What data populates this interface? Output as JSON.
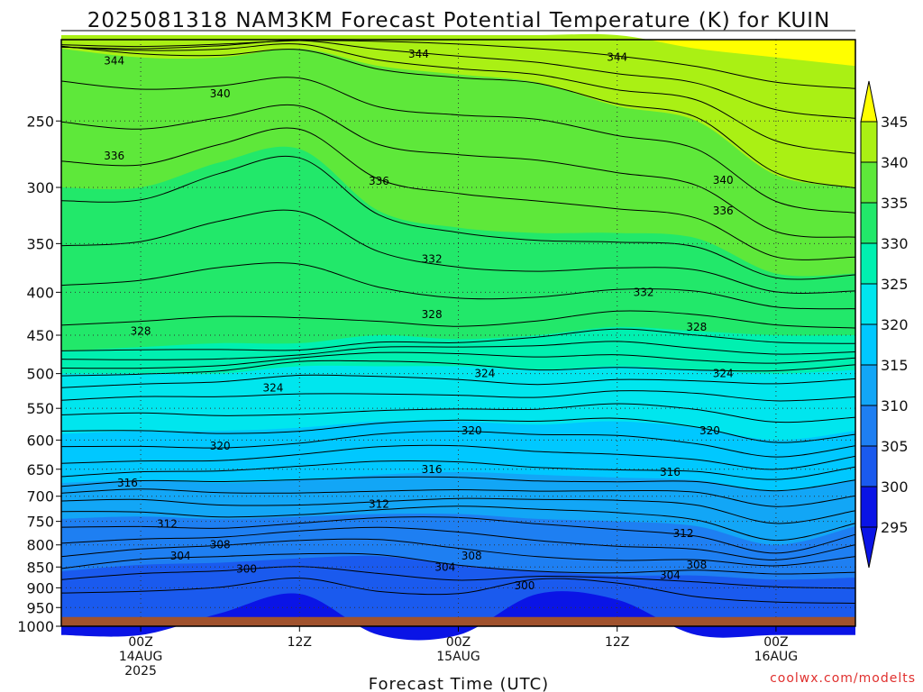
{
  "title": "2025081318 NAM3KM Forecast Potential Temperature (K) for KUIN",
  "credit": "coolwx.com/modelts",
  "colors": {
    "ground": "#a0522d",
    "fill_bands": [
      {
        "min": 295,
        "max": 300,
        "color": "#0a14e6"
      },
      {
        "min": 300,
        "max": 305,
        "color": "#1a5aee"
      },
      {
        "min": 305,
        "max": 310,
        "color": "#1e7ff2"
      },
      {
        "min": 310,
        "max": 315,
        "color": "#12a6f6"
      },
      {
        "min": 315,
        "max": 320,
        "color": "#00c8ff"
      },
      {
        "min": 320,
        "max": 325,
        "color": "#00e6ee"
      },
      {
        "min": 325,
        "max": 330,
        "color": "#00f0b0"
      },
      {
        "min": 330,
        "max": 335,
        "color": "#22e86a"
      },
      {
        "min": 335,
        "max": 340,
        "color": "#5ee83a"
      },
      {
        "min": 340,
        "max": 345,
        "color": "#aaf014"
      },
      {
        "min": 345,
        "max": 350,
        "color": "#ffff00"
      }
    ]
  },
  "chart_data": {
    "type": "heatmap",
    "title": "2025081318 NAM3KM Forecast Potential Temperature (K) for KUIN",
    "xlabel": "Forecast Time (UTC)",
    "ylabel": "",
    "x_ticks": [
      {
        "line1": "00Z",
        "line2": "14AUG",
        "line3": "2025",
        "hour": 6
      },
      {
        "line1": "12Z",
        "line2": "",
        "line3": "",
        "hour": 18
      },
      {
        "line1": "00Z",
        "line2": "15AUG",
        "line3": "",
        "hour": 30
      },
      {
        "line1": "12Z",
        "line2": "",
        "line3": "",
        "hour": 42
      },
      {
        "line1": "00Z",
        "line2": "16AUG",
        "line3": "",
        "hour": 54
      }
    ],
    "xlim_hours": [
      0,
      60
    ],
    "y_ticks": [
      "250",
      "300",
      "350",
      "400",
      "450",
      "500",
      "550",
      "600",
      "650",
      "700",
      "750",
      "800",
      "850",
      "900",
      "950",
      "1000"
    ],
    "ylim_hpa": [
      200,
      1000
    ],
    "y_scale": "log-pressure",
    "surface_hpa": 975,
    "grid": true,
    "colorbar": {
      "labels": [
        "295",
        "300",
        "305",
        "310",
        "315",
        "320",
        "325",
        "330",
        "335",
        "340",
        "345"
      ],
      "extend": "both"
    },
    "contour_interval_K": 4,
    "contours": [
      {
        "theta": 300,
        "label": "300",
        "levels_hpa": []
      },
      {
        "theta": 304,
        "label": "304"
      },
      {
        "theta": 308,
        "label": "308"
      },
      {
        "theta": 312,
        "label": "312"
      },
      {
        "theta": 316,
        "label": "316"
      },
      {
        "theta": 320,
        "label": "320"
      },
      {
        "theta": 324,
        "label": "324"
      },
      {
        "theta": 328,
        "label": "328"
      },
      {
        "theta": 332,
        "label": "332"
      },
      {
        "theta": 336,
        "label": "336"
      },
      {
        "theta": 340,
        "label": "340"
      },
      {
        "theta": 344,
        "label": "344"
      }
    ],
    "profile_hours": [
      0,
      6,
      12,
      18,
      24,
      30,
      36,
      42,
      48,
      54,
      60
    ],
    "theta_levels_K": [
      300,
      305,
      310,
      315,
      320,
      325,
      330,
      335,
      340,
      345
    ],
    "profiles_hpa": [
      [
        null,
        860,
        745,
        675,
        590,
        500,
        470,
        300,
        205,
        null
      ],
      [
        null,
        845,
        740,
        670,
        585,
        500,
        465,
        300,
        210,
        null
      ],
      [
        965,
        840,
        745,
        675,
        585,
        500,
        460,
        280,
        210,
        null
      ],
      [
        915,
        830,
        740,
        670,
        580,
        490,
        460,
        270,
        205,
        null
      ],
      [
        null,
        825,
        735,
        660,
        570,
        490,
        450,
        320,
        215,
        null
      ],
      [
        null,
        845,
        735,
        655,
        570,
        490,
        455,
        335,
        220,
        null
      ],
      [
        915,
        860,
        745,
        660,
        575,
        495,
        450,
        340,
        225,
        null
      ],
      [
        930,
        870,
        750,
        665,
        570,
        490,
        440,
        340,
        240,
        null
      ],
      [
        null,
        870,
        760,
        670,
        580,
        495,
        445,
        345,
        250,
        205
      ],
      [
        null,
        880,
        800,
        690,
        600,
        500,
        450,
        380,
        290,
        210
      ],
      [
        null,
        875,
        760,
        670,
        585,
        495,
        450,
        380,
        300,
        215
      ]
    ],
    "labels_annotated": [
      {
        "text": "344",
        "hour": 4,
        "hpa": 212
      },
      {
        "text": "344",
        "hour": 27,
        "hpa": 208
      },
      {
        "text": "344",
        "hour": 42,
        "hpa": 210
      },
      {
        "text": "340",
        "hour": 12,
        "hpa": 232
      },
      {
        "text": "340",
        "hour": 50,
        "hpa": 294
      },
      {
        "text": "336",
        "hour": 4,
        "hpa": 275
      },
      {
        "text": "336",
        "hour": 24,
        "hpa": 295
      },
      {
        "text": "336",
        "hour": 50,
        "hpa": 320
      },
      {
        "text": "332",
        "hour": 28,
        "hpa": 365
      },
      {
        "text": "332",
        "hour": 44,
        "hpa": 400
      },
      {
        "text": "328",
        "hour": 6,
        "hpa": 445
      },
      {
        "text": "328",
        "hour": 28,
        "hpa": 425
      },
      {
        "text": "328",
        "hour": 48,
        "hpa": 440
      },
      {
        "text": "324",
        "hour": 16,
        "hpa": 520
      },
      {
        "text": "324",
        "hour": 32,
        "hpa": 500
      },
      {
        "text": "324",
        "hour": 50,
        "hpa": 500
      },
      {
        "text": "320",
        "hour": 12,
        "hpa": 610
      },
      {
        "text": "320",
        "hour": 31,
        "hpa": 585
      },
      {
        "text": "320",
        "hour": 49,
        "hpa": 585
      },
      {
        "text": "316",
        "hour": 5,
        "hpa": 675
      },
      {
        "text": "316",
        "hour": 28,
        "hpa": 650
      },
      {
        "text": "316",
        "hour": 46,
        "hpa": 655
      },
      {
        "text": "312",
        "hour": 8,
        "hpa": 755
      },
      {
        "text": "312",
        "hour": 24,
        "hpa": 715
      },
      {
        "text": "312",
        "hour": 47,
        "hpa": 775
      },
      {
        "text": "308",
        "hour": 12,
        "hpa": 800
      },
      {
        "text": "308",
        "hour": 31,
        "hpa": 825
      },
      {
        "text": "308",
        "hour": 48,
        "hpa": 845
      },
      {
        "text": "304",
        "hour": 9,
        "hpa": 825
      },
      {
        "text": "304",
        "hour": 29,
        "hpa": 850
      },
      {
        "text": "304",
        "hour": 46,
        "hpa": 870
      },
      {
        "text": "300",
        "hour": 14,
        "hpa": 855
      },
      {
        "text": "300",
        "hour": 35,
        "hpa": 895
      }
    ]
  }
}
